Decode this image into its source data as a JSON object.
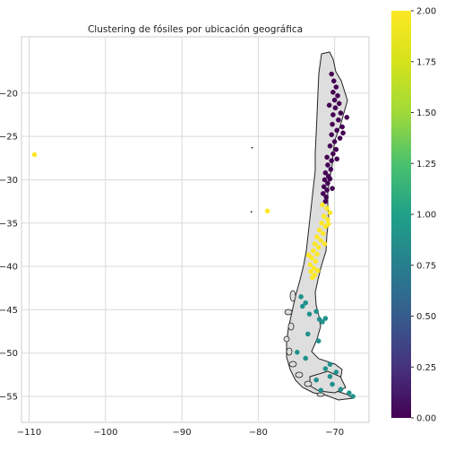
{
  "chart_data": {
    "type": "scatter",
    "title": "Clustering de fósiles por ubicación geográfica",
    "xlabel": "",
    "ylabel": "",
    "xlim": [
      -111,
      -65.5
    ],
    "ylim": [
      -58,
      -13.5
    ],
    "x_ticks": [
      -110,
      -100,
      -90,
      -80,
      -70
    ],
    "y_ticks": [
      -20,
      -25,
      -30,
      -35,
      -40,
      -45,
      -50,
      -55
    ],
    "x_tick_labels": [
      "−110",
      "−100",
      "−90",
      "−80",
      "−70"
    ],
    "y_tick_labels": [
      "−20",
      "−25",
      "−30",
      "−35",
      "−40",
      "−45",
      "−50",
      "−55"
    ],
    "grid": true,
    "colormap": "viridis",
    "colorbar": {
      "range": [
        0,
        2
      ],
      "ticks": [
        0,
        0.25,
        0.5,
        0.75,
        1.0,
        1.25,
        1.5,
        1.75,
        2.0
      ],
      "tick_labels": [
        "0.00",
        "0.25",
        "0.50",
        "0.75",
        "1.00",
        "1.25",
        "1.50",
        "1.75",
        "2.00"
      ]
    },
    "cluster_colors": {
      "0": "#440154",
      "1": "#21918c",
      "2": "#fde725"
    },
    "basemap": "Chile outline (light grey fill, dark border)",
    "series": [
      {
        "cluster": 0,
        "points": [
          [
            -70.4,
            -17.8
          ],
          [
            -70.1,
            -18.6
          ],
          [
            -69.8,
            -19.3
          ],
          [
            -70.2,
            -19.9
          ],
          [
            -69.6,
            -20.3
          ],
          [
            -70.0,
            -20.8
          ],
          [
            -69.4,
            -21.2
          ],
          [
            -69.9,
            -21.7
          ],
          [
            -69.2,
            -22.3
          ],
          [
            -68.4,
            -22.8
          ],
          [
            -70.2,
            -22.5
          ],
          [
            -69.5,
            -23.1
          ],
          [
            -70.3,
            -23.6
          ],
          [
            -69.0,
            -23.9
          ],
          [
            -69.7,
            -24.3
          ],
          [
            -70.4,
            -24.8
          ],
          [
            -69.3,
            -25.2
          ],
          [
            -70.0,
            -25.6
          ],
          [
            -70.6,
            -26.1
          ],
          [
            -69.8,
            -26.5
          ],
          [
            -70.2,
            -27.0
          ],
          [
            -71.0,
            -27.4
          ],
          [
            -70.4,
            -27.8
          ],
          [
            -70.9,
            -28.3
          ],
          [
            -70.5,
            -28.8
          ],
          [
            -71.2,
            -29.2
          ],
          [
            -70.8,
            -29.6
          ],
          [
            -71.3,
            -30.0
          ],
          [
            -70.9,
            -30.4
          ],
          [
            -71.4,
            -30.8
          ],
          [
            -71.0,
            -31.2
          ],
          [
            -71.5,
            -31.6
          ],
          [
            -71.1,
            -32.0
          ],
          [
            -70.6,
            -29.9
          ],
          [
            -70.3,
            -31.0
          ],
          [
            -69.7,
            -27.6
          ],
          [
            -68.9,
            -24.6
          ],
          [
            -70.7,
            -21.4
          ],
          [
            -71.2,
            -32.5
          ]
        ]
      },
      {
        "cluster": 2,
        "points": [
          [
            -109.3,
            -27.1
          ],
          [
            -78.8,
            -33.6
          ],
          [
            -71.6,
            -32.9
          ],
          [
            -71.0,
            -33.3
          ],
          [
            -70.6,
            -33.8
          ],
          [
            -71.4,
            -34.2
          ],
          [
            -70.9,
            -34.6
          ],
          [
            -71.7,
            -35.0
          ],
          [
            -71.2,
            -35.4
          ],
          [
            -72.0,
            -35.8
          ],
          [
            -71.5,
            -36.2
          ],
          [
            -72.3,
            -36.6
          ],
          [
            -71.8,
            -37.0
          ],
          [
            -72.6,
            -37.4
          ],
          [
            -72.1,
            -37.8
          ],
          [
            -72.8,
            -38.2
          ],
          [
            -72.3,
            -38.6
          ],
          [
            -73.0,
            -39.0
          ],
          [
            -72.5,
            -39.4
          ],
          [
            -73.2,
            -39.8
          ],
          [
            -72.7,
            -40.2
          ],
          [
            -73.1,
            -40.6
          ],
          [
            -72.6,
            -41.0
          ],
          [
            -72.9,
            -41.3
          ],
          [
            -70.8,
            -35.1
          ],
          [
            -71.3,
            -37.4
          ],
          [
            -73.4,
            -38.7
          ],
          [
            -72.2,
            -40.5
          ]
        ]
      },
      {
        "cluster": 1,
        "points": [
          [
            -73.8,
            -44.2
          ],
          [
            -74.2,
            -44.6
          ],
          [
            -73.3,
            -45.5
          ],
          [
            -72.4,
            -45.2
          ],
          [
            -72.0,
            -46.1
          ],
          [
            -71.6,
            -46.4
          ],
          [
            -71.2,
            -46.0
          ],
          [
            -73.5,
            -47.8
          ],
          [
            -72.1,
            -48.6
          ],
          [
            -74.9,
            -49.9
          ],
          [
            -73.8,
            -50.6
          ],
          [
            -71.2,
            -51.8
          ],
          [
            -69.8,
            -52.2
          ],
          [
            -70.6,
            -52.7
          ],
          [
            -72.4,
            -53.1
          ],
          [
            -70.3,
            -53.6
          ],
          [
            -71.8,
            -54.3
          ],
          [
            -69.2,
            -54.2
          ],
          [
            -68.1,
            -54.6
          ],
          [
            -67.6,
            -55.0
          ],
          [
            -70.6,
            -51.3
          ],
          [
            -74.4,
            -43.5
          ]
        ]
      }
    ],
    "black_markers": [
      [
        -80.8,
        -26.3
      ],
      [
        -80.9,
        -33.7
      ]
    ]
  }
}
